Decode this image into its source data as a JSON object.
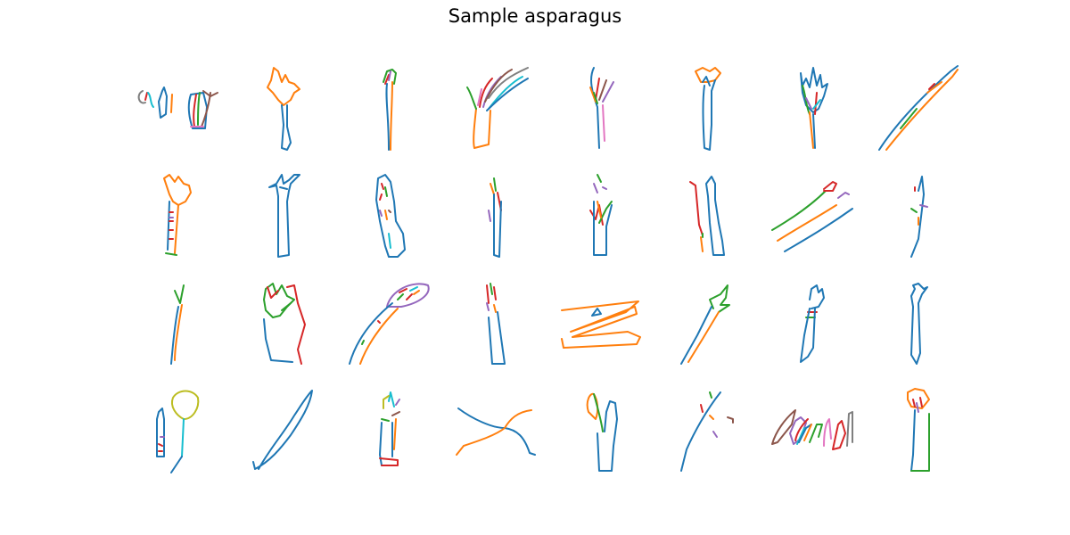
{
  "figure": {
    "title": "Sample asparagus"
  },
  "palette": {
    "blue": "#1f77b4",
    "orange": "#ff7f0e",
    "green": "#2ca02c",
    "red": "#d62728",
    "purple": "#9467bd",
    "brown": "#8c564b",
    "pink": "#e377c2",
    "gray": "#7f7f7f",
    "olive": "#bcbd22",
    "cyan": "#17becf"
  },
  "grid": {
    "rows": 4,
    "cols": 8,
    "count": 32
  }
}
